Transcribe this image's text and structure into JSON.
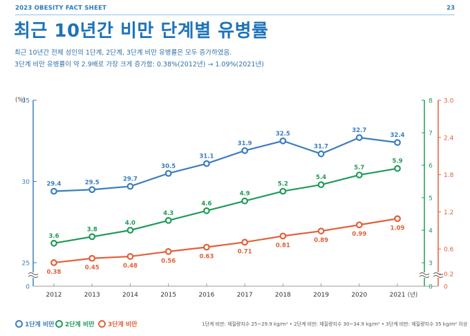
{
  "header": {
    "fact_sheet": "2023 OBESITY FACT SHEET",
    "page_number": "23",
    "title": "최근 10년간 비만 단계별 유병률",
    "desc_line1": "최근 10년간 전체 성인의 1단계, 2단계, 3단계 비만 유병률은 모두 증가하였음.",
    "desc_line2": "3단계 비만 유병률이 약 2.9배로 가장 크게 증가함: 0.38%(2012년) → 1.09%(2021년)"
  },
  "chart_data": {
    "type": "line",
    "x": [
      "2012",
      "2013",
      "2014",
      "2015",
      "2016",
      "2017",
      "2018",
      "2019",
      "2020",
      "2021"
    ],
    "x_unit": "(년)",
    "y_unit": "(%)",
    "series": [
      {
        "name": "1단계 비만",
        "axis": "left",
        "color": "#3a7dbf",
        "values": [
          29.4,
          29.5,
          29.7,
          30.5,
          31.1,
          31.9,
          32.5,
          31.7,
          32.7,
          32.4
        ],
        "labels": [
          "29.4",
          "29.5",
          "29.7",
          "30.5",
          "31.1",
          "31.9",
          "32.5",
          "31.7",
          "32.7",
          "32.4"
        ]
      },
      {
        "name": "2단계 비만",
        "axis": "right1",
        "color": "#1f9a57",
        "values": [
          3.6,
          3.8,
          4.0,
          4.3,
          4.6,
          4.9,
          5.2,
          5.4,
          5.7,
          5.9
        ],
        "labels": [
          "3.6",
          "3.8",
          "4.0",
          "4.3",
          "4.6",
          "4.9",
          "5.2",
          "5.4",
          "5.7",
          "5.9"
        ]
      },
      {
        "name": "3단계 비만",
        "axis": "right2",
        "color": "#e0603a",
        "values": [
          0.38,
          0.45,
          0.48,
          0.56,
          0.63,
          0.71,
          0.81,
          0.89,
          0.99,
          1.09
        ],
        "labels": [
          "0.38",
          "0.45",
          "0.48",
          "0.56",
          "0.63",
          "0.71",
          "0.81",
          "0.89",
          "0.99",
          "1.09"
        ]
      }
    ],
    "axes": {
      "left": {
        "range": [
          25,
          35
        ],
        "ticks": [
          "25",
          "30",
          "35"
        ],
        "tick_values": [
          25,
          30,
          35
        ],
        "zero": "0",
        "color": "#3a7dbf"
      },
      "right1": {
        "range": [
          3,
          8
        ],
        "ticks": [
          "3",
          "4",
          "5",
          "6",
          "7",
          "8"
        ],
        "tick_values": [
          3,
          4,
          5,
          6,
          7,
          8
        ],
        "zero": "0",
        "color": "#1f9a57"
      },
      "right2": {
        "range": [
          0,
          3
        ],
        "ticks": [
          "0.2",
          "0.6",
          "1.2",
          "1.8",
          "2.4",
          "3.0"
        ],
        "tick_values": [
          0.2,
          0.6,
          1.2,
          1.8,
          2.4,
          3.0
        ],
        "zero": "0",
        "color": "#e0603a"
      }
    },
    "grid": false
  },
  "legend": {
    "items": [
      {
        "label": "1단계 비만",
        "color": "#3a7dbf"
      },
      {
        "label": "2단계 비만",
        "color": "#1f9a57"
      },
      {
        "label": "3단계 비만",
        "color": "#e0603a"
      }
    ]
  },
  "footnote": "1단계 비만: 체질량지수 25~29.9 kg/m²  •  2단계 비만: 체질량지수 30~34.9 kg/m²  •  3단계 비만: 체질량지수 35 kg/m² 이상"
}
